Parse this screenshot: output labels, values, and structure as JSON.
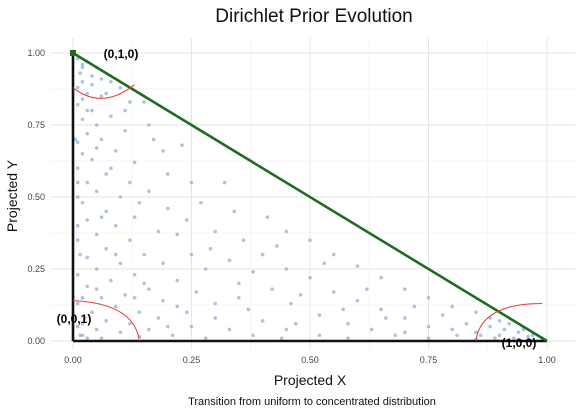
{
  "chart_data": {
    "type": "scatter",
    "title": "Dirichlet Prior Evolution",
    "caption": "Transition from uniform to concentrated distribution",
    "xlabel": "Projected X",
    "ylabel": "Projected Y",
    "xlim": [
      0,
      1
    ],
    "ylim": [
      0,
      1
    ],
    "x_ticks": [
      "0.00",
      "0.25",
      "0.50",
      "0.75",
      "1.00"
    ],
    "y_ticks": [
      "0.00",
      "0.25",
      "0.50",
      "0.75",
      "1.00"
    ],
    "grid": true,
    "vertices": [
      {
        "label": "(1,0,0)",
        "x": 1.0,
        "y": 0.0
      },
      {
        "label": "(0,1,0)",
        "x": 0.0,
        "y": 1.0
      },
      {
        "label": "(0,0,1)",
        "x": 0.0,
        "y": 0.0
      }
    ],
    "colors": {
      "points": "#8fb0d6",
      "hypotenuse": "#1f6b1f",
      "edges": "#111111",
      "arcs": "#e34040",
      "grid": "#e6e6e6"
    },
    "points": [
      [
        0.01,
        0.98
      ],
      [
        0.02,
        0.95
      ],
      [
        0.015,
        0.93
      ],
      [
        0.03,
        0.97
      ],
      [
        0.02,
        0.9
      ],
      [
        0.04,
        0.92
      ],
      [
        0.01,
        0.88
      ],
      [
        0.05,
        0.95
      ],
      [
        0.03,
        0.86
      ],
      [
        0.06,
        0.91
      ],
      [
        0.02,
        0.84
      ],
      [
        0.08,
        0.9
      ],
      [
        0.01,
        0.82
      ],
      [
        0.04,
        0.8
      ],
      [
        0.07,
        0.86
      ],
      [
        0.1,
        0.88
      ],
      [
        0.02,
        0.77
      ],
      [
        0.05,
        0.75
      ],
      [
        0.12,
        0.83
      ],
      [
        0.03,
        0.72
      ],
      [
        0.08,
        0.78
      ],
      [
        0.15,
        0.83
      ],
      [
        0.01,
        0.69
      ],
      [
        0.06,
        0.7
      ],
      [
        0.11,
        0.73
      ],
      [
        0.02,
        0.65
      ],
      [
        0.16,
        0.75
      ],
      [
        0.04,
        0.63
      ],
      [
        0.09,
        0.66
      ],
      [
        0.13,
        0.62
      ],
      [
        0.01,
        0.6
      ],
      [
        0.07,
        0.58
      ],
      [
        0.19,
        0.66
      ],
      [
        0.03,
        0.55
      ],
      [
        0.12,
        0.55
      ],
      [
        0.23,
        0.68
      ],
      [
        0.05,
        0.52
      ],
      [
        0.1,
        0.5
      ],
      [
        0.16,
        0.52
      ],
      [
        0.02,
        0.48
      ],
      [
        0.25,
        0.55
      ],
      [
        0.07,
        0.45
      ],
      [
        0.2,
        0.46
      ],
      [
        0.13,
        0.43
      ],
      [
        0.03,
        0.42
      ],
      [
        0.32,
        0.55
      ],
      [
        0.09,
        0.4
      ],
      [
        0.27,
        0.48
      ],
      [
        0.18,
        0.38
      ],
      [
        0.05,
        0.37
      ],
      [
        0.01,
        0.35
      ],
      [
        0.12,
        0.35
      ],
      [
        0.34,
        0.45
      ],
      [
        0.22,
        0.37
      ],
      [
        0.07,
        0.32
      ],
      [
        0.15,
        0.3
      ],
      [
        0.3,
        0.38
      ],
      [
        0.03,
        0.29
      ],
      [
        0.41,
        0.43
      ],
      [
        0.1,
        0.27
      ],
      [
        0.25,
        0.3
      ],
      [
        0.19,
        0.27
      ],
      [
        0.05,
        0.25
      ],
      [
        0.36,
        0.35
      ],
      [
        0.01,
        0.23
      ],
      [
        0.13,
        0.23
      ],
      [
        0.28,
        0.25
      ],
      [
        0.45,
        0.38
      ],
      [
        0.08,
        0.21
      ],
      [
        0.22,
        0.21
      ],
      [
        0.33,
        0.28
      ],
      [
        0.03,
        0.19
      ],
      [
        0.16,
        0.18
      ],
      [
        0.4,
        0.3
      ],
      [
        0.5,
        0.35
      ],
      [
        0.11,
        0.16
      ],
      [
        0.26,
        0.17
      ],
      [
        0.06,
        0.15
      ],
      [
        0.35,
        0.2
      ],
      [
        0.45,
        0.25
      ],
      [
        0.19,
        0.14
      ],
      [
        0.01,
        0.13
      ],
      [
        0.3,
        0.13
      ],
      [
        0.55,
        0.3
      ],
      [
        0.09,
        0.12
      ],
      [
        0.42,
        0.18
      ],
      [
        0.14,
        0.1
      ],
      [
        0.24,
        0.1
      ],
      [
        0.04,
        0.1
      ],
      [
        0.5,
        0.22
      ],
      [
        0.37,
        0.11
      ],
      [
        0.6,
        0.26
      ],
      [
        0.18,
        0.08
      ],
      [
        0.3,
        0.08
      ],
      [
        0.07,
        0.07
      ],
      [
        0.46,
        0.13
      ],
      [
        0.55,
        0.17
      ],
      [
        0.12,
        0.06
      ],
      [
        0.02,
        0.06
      ],
      [
        0.65,
        0.22
      ],
      [
        0.25,
        0.05
      ],
      [
        0.4,
        0.07
      ],
      [
        0.6,
        0.14
      ],
      [
        0.16,
        0.04
      ],
      [
        0.52,
        0.09
      ],
      [
        0.05,
        0.04
      ],
      [
        0.7,
        0.18
      ],
      [
        0.33,
        0.04
      ],
      [
        0.65,
        0.11
      ],
      [
        0.1,
        0.03
      ],
      [
        0.45,
        0.04
      ],
      [
        0.75,
        0.15
      ],
      [
        0.58,
        0.06
      ],
      [
        0.21,
        0.02
      ],
      [
        0.02,
        0.02
      ],
      [
        0.7,
        0.08
      ],
      [
        0.8,
        0.12
      ],
      [
        0.38,
        0.02
      ],
      [
        0.63,
        0.04
      ],
      [
        0.14,
        0.015
      ],
      [
        0.52,
        0.02
      ],
      [
        0.85,
        0.1
      ],
      [
        0.75,
        0.05
      ],
      [
        0.28,
        0.01
      ],
      [
        0.06,
        0.01
      ],
      [
        0.68,
        0.02
      ],
      [
        0.88,
        0.08
      ],
      [
        0.8,
        0.04
      ],
      [
        0.44,
        0.01
      ],
      [
        0.92,
        0.06
      ],
      [
        0.85,
        0.03
      ],
      [
        0.58,
        0.01
      ],
      [
        0.95,
        0.04
      ],
      [
        0.9,
        0.02
      ],
      [
        0.75,
        0.01
      ],
      [
        0.97,
        0.02
      ],
      [
        0.93,
        0.01
      ],
      [
        0.85,
        0.005
      ],
      [
        0.99,
        0.01
      ],
      [
        0.96,
        0.005
      ],
      [
        0.01,
        0.5
      ],
      [
        0.015,
        0.3
      ],
      [
        0.02,
        0.15
      ],
      [
        0.01,
        0.4
      ],
      [
        0.025,
        0.08
      ],
      [
        0.01,
        0.05
      ],
      [
        0.03,
        0.01
      ],
      [
        0.015,
        0.02
      ],
      [
        0.005,
        0.7
      ],
      [
        0.01,
        0.55
      ],
      [
        0.88,
        0.05
      ],
      [
        0.9,
        0.07
      ],
      [
        0.83,
        0.06
      ],
      [
        0.78,
        0.09
      ],
      [
        0.86,
        0.02
      ],
      [
        0.94,
        0.03
      ],
      [
        0.91,
        0.04
      ],
      [
        0.81,
        0.02
      ],
      [
        0.96,
        0.015
      ],
      [
        0.89,
        0.01
      ],
      [
        0.02,
        0.96
      ],
      [
        0.04,
        0.89
      ],
      [
        0.06,
        0.85
      ],
      [
        0.03,
        0.8
      ],
      [
        0.05,
        0.67
      ],
      [
        0.08,
        0.6
      ],
      [
        0.14,
        0.48
      ],
      [
        0.2,
        0.58
      ],
      [
        0.17,
        0.7
      ],
      [
        0.11,
        0.8
      ],
      [
        0.24,
        0.42
      ],
      [
        0.29,
        0.32
      ],
      [
        0.38,
        0.24
      ],
      [
        0.48,
        0.16
      ],
      [
        0.57,
        0.11
      ],
      [
        0.66,
        0.08
      ],
      [
        0.72,
        0.12
      ],
      [
        0.62,
        0.18
      ],
      [
        0.53,
        0.27
      ],
      [
        0.43,
        0.33
      ],
      [
        0.35,
        0.15
      ],
      [
        0.22,
        0.12
      ],
      [
        0.15,
        0.2
      ],
      [
        0.09,
        0.3
      ],
      [
        0.06,
        0.43
      ],
      [
        0.13,
        0.15
      ],
      [
        0.2,
        0.05
      ],
      [
        0.47,
        0.06
      ],
      [
        0.7,
        0.03
      ],
      [
        0.05,
        0.18
      ]
    ]
  }
}
